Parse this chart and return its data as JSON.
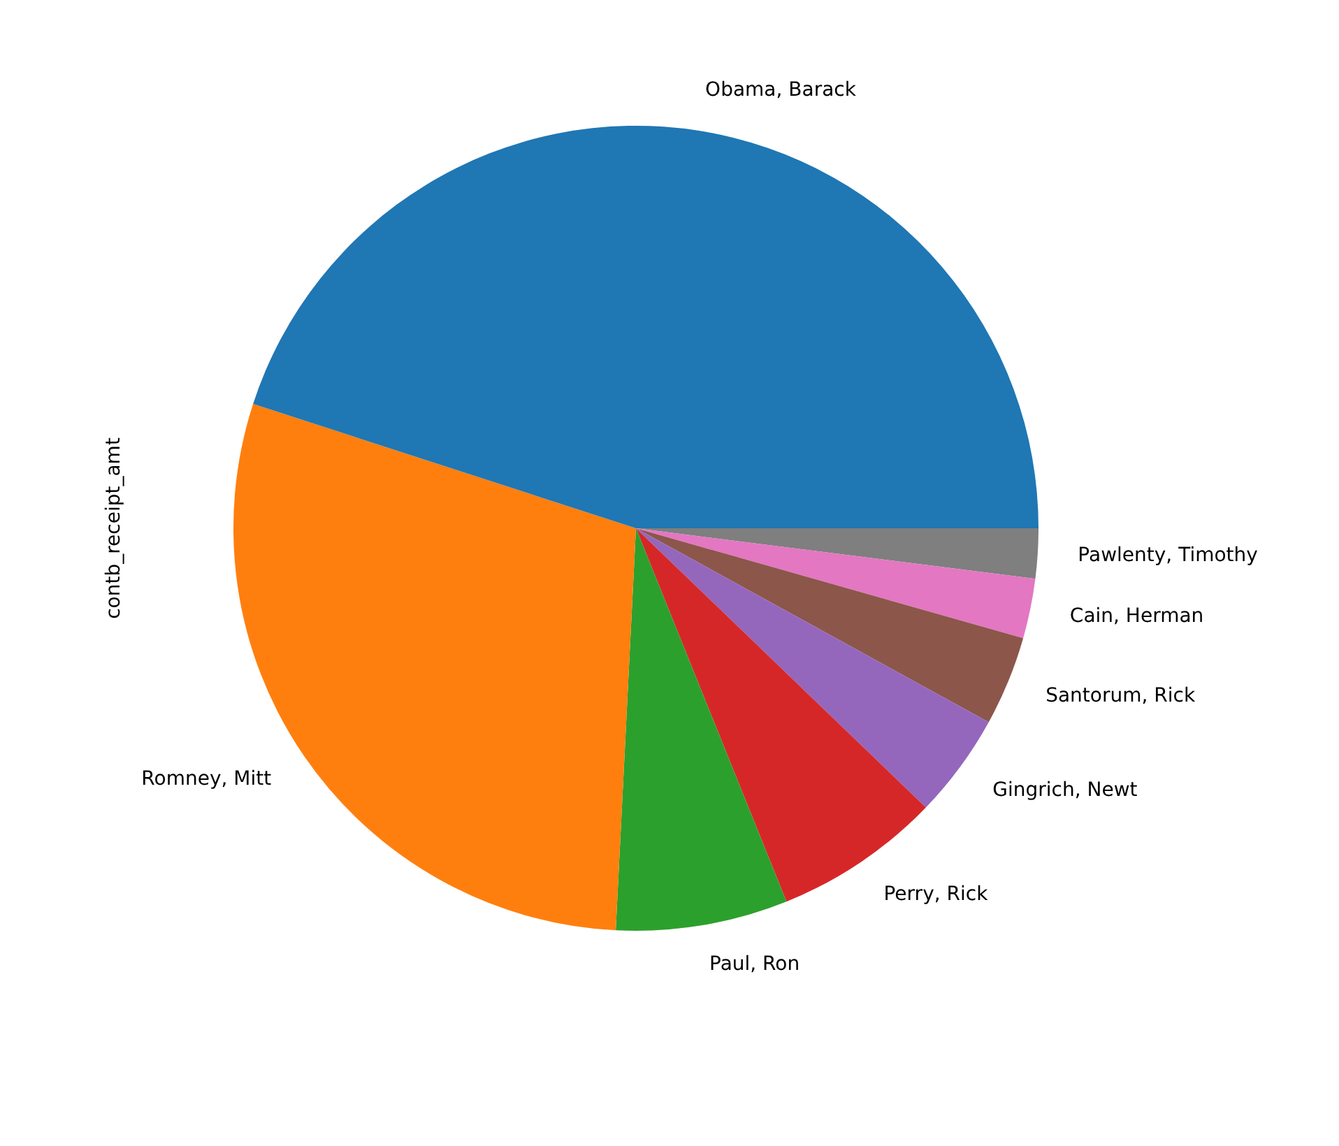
{
  "chart_data": {
    "type": "pie",
    "ylabel": "contb_receipt_amt",
    "categories": [
      "Obama, Barack",
      "Romney, Mitt",
      "Paul, Ron",
      "Perry, Rick",
      "Gingrich, Newt",
      "Santorum, Rick",
      "Cain, Herman",
      "Pawlenty, Timothy"
    ],
    "values": [
      45.0,
      29.2,
      6.9,
      6.7,
      4.2,
      3.6,
      2.4,
      2.0
    ],
    "colors": [
      "#1f77b4",
      "#ff7f0e",
      "#2ca02c",
      "#d62728",
      "#9467bd",
      "#8c564b",
      "#e377c2",
      "#7f7f7f"
    ],
    "legend": false
  }
}
